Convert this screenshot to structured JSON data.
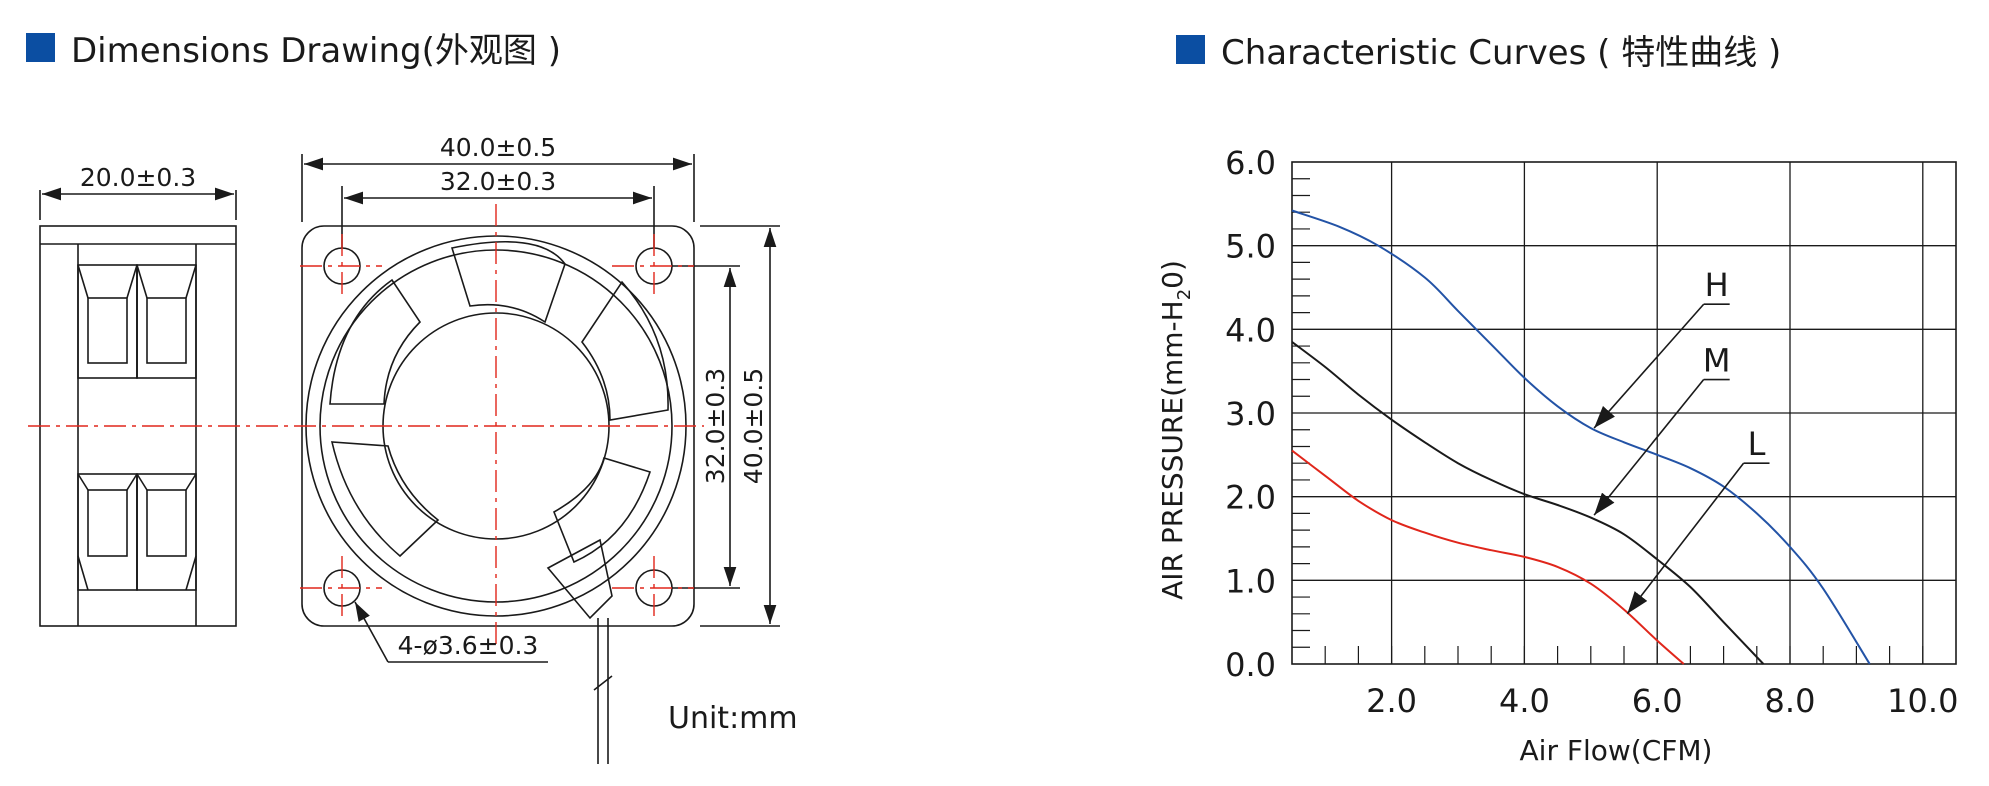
{
  "colors": {
    "section_marker": "#0b4ea2",
    "centerline": "#e0261b",
    "curve_H": "#2353a6",
    "curve_M": "#1a1a1a",
    "curve_L": "#e0261b",
    "line": "#1a1a1a"
  },
  "left_section": {
    "marker_icon": "blue-square-icon",
    "title": "Dimensions Drawing(外观图 )"
  },
  "right_section": {
    "marker_icon": "blue-square-icon",
    "title": "Characteristic Curves ( 特性曲线 )"
  },
  "drawing": {
    "dim_depth": "20.0±0.3",
    "dim_width_outer": "40.0±0.5",
    "dim_width_hole": "32.0±0.3",
    "dim_height_hole": "32.0±0.3",
    "dim_height_outer": "40.0±0.5",
    "dim_mounting_holes": "4-ø3.6±0.3",
    "unit": "Unit:mm"
  },
  "chart_data": {
    "type": "line",
    "xlabel": "Air Flow(CFM)",
    "ylabel": "AIR PRESSURE(mm-H",
    "ylabel_sub": "2",
    "ylabel_end": "0)",
    "xlim": [
      0.5,
      10.5
    ],
    "ylim": [
      0,
      6
    ],
    "x_ticks": [
      2.0,
      4.0,
      6.0,
      8.0,
      10.0
    ],
    "x_tick_labels": [
      "2.0",
      "4.0",
      "6.0",
      "8.0",
      "10.0"
    ],
    "y_ticks": [
      0,
      1,
      2,
      3,
      4,
      5,
      6
    ],
    "y_tick_labels": [
      "0.0",
      "1.0",
      "2.0",
      "3.0",
      "4.0",
      "5.0",
      "6.0"
    ],
    "grid": true,
    "series": [
      {
        "name": "H",
        "color": "#2353a6",
        "x": [
          0.5,
          1.2,
          1.8,
          2.5,
          3.0,
          3.5,
          4.0,
          4.5,
          5.0,
          5.5,
          6.0,
          6.5,
          7.0,
          7.5,
          8.0,
          8.5,
          9.2
        ],
        "y": [
          5.42,
          5.23,
          5.0,
          4.62,
          4.22,
          3.82,
          3.42,
          3.08,
          2.82,
          2.65,
          2.5,
          2.34,
          2.12,
          1.8,
          1.4,
          0.9,
          0.0
        ],
        "callout": {
          "label": "H",
          "tip": [
            5.05,
            2.82
          ],
          "end": [
            6.7,
            4.3
          ]
        }
      },
      {
        "name": "M",
        "color": "#1a1a1a",
        "x": [
          0.5,
          1.0,
          1.5,
          2.0,
          2.5,
          3.0,
          3.5,
          4.0,
          4.5,
          5.0,
          5.5,
          6.0,
          6.5,
          7.0,
          7.6
        ],
        "y": [
          3.85,
          3.55,
          3.22,
          2.92,
          2.65,
          2.4,
          2.2,
          2.03,
          1.9,
          1.75,
          1.55,
          1.25,
          0.92,
          0.5,
          0.0
        ],
        "callout": {
          "label": "M",
          "tip": [
            5.05,
            1.78
          ],
          "end": [
            6.7,
            3.4
          ]
        }
      },
      {
        "name": "L",
        "color": "#e0261b",
        "x": [
          0.5,
          1.0,
          1.5,
          2.0,
          2.5,
          3.0,
          3.5,
          4.0,
          4.5,
          5.0,
          5.5,
          6.0,
          6.4
        ],
        "y": [
          2.55,
          2.25,
          1.95,
          1.72,
          1.57,
          1.45,
          1.36,
          1.28,
          1.16,
          0.96,
          0.65,
          0.28,
          0.0
        ],
        "callout": {
          "label": "L",
          "tip": [
            5.55,
            0.6
          ],
          "end": [
            7.3,
            2.4
          ]
        }
      }
    ]
  }
}
